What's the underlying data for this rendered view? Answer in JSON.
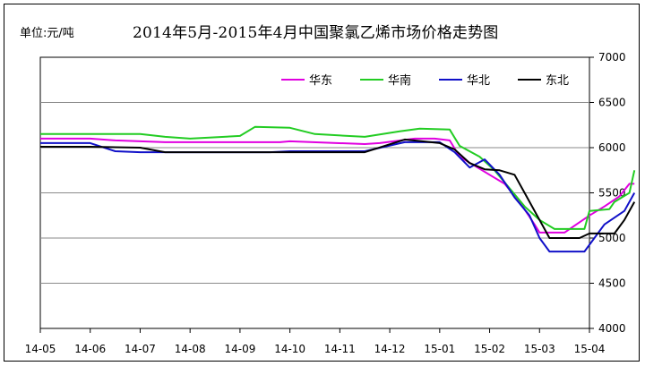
{
  "chart_data": {
    "type": "line",
    "title": "2014年5月-2015年4月中国聚氯乙烯市场价格走势图",
    "unit_label": "单位:元/吨",
    "y_axis_side": "right",
    "ylim": [
      4000,
      7000
    ],
    "yticks": [
      4000,
      4500,
      5000,
      5500,
      6000,
      6500,
      7000
    ],
    "ytick_labels": [
      "4000",
      "4500",
      "5000",
      "5500",
      "6000",
      "6500",
      "7000"
    ],
    "xticks": [
      "14-05",
      "14-06",
      "14-07",
      "14-08",
      "14-09",
      "14-10",
      "14-11",
      "14-12",
      "15-01",
      "15-02",
      "15-03",
      "15-04"
    ],
    "grid": true,
    "legend_position": "top-right",
    "series": [
      {
        "name": "华东",
        "color": "#e000e0",
        "points": [
          [
            0,
            6100
          ],
          [
            1,
            6100
          ],
          [
            1.5,
            6080
          ],
          [
            2.5,
            6060
          ],
          [
            4.8,
            6060
          ],
          [
            5,
            6070
          ],
          [
            6.5,
            6040
          ],
          [
            6.8,
            6050
          ],
          [
            7.5,
            6100
          ],
          [
            7.9,
            6100
          ],
          [
            8.2,
            6080
          ],
          [
            8.4,
            5900
          ],
          [
            9,
            5700
          ],
          [
            9.3,
            5600
          ],
          [
            9.6,
            5400
          ],
          [
            9.9,
            5150
          ],
          [
            10,
            5060
          ],
          [
            10.5,
            5060
          ],
          [
            11,
            5250
          ],
          [
            11.3,
            5350
          ],
          [
            11.6,
            5460
          ],
          [
            11.8,
            5600
          ],
          [
            11.9,
            5600
          ]
        ]
      },
      {
        "name": "华南",
        "color": "#22cc22",
        "points": [
          [
            0,
            6150
          ],
          [
            2,
            6150
          ],
          [
            2.5,
            6120
          ],
          [
            3,
            6100
          ],
          [
            4,
            6130
          ],
          [
            4.3,
            6230
          ],
          [
            5,
            6220
          ],
          [
            5.5,
            6150
          ],
          [
            6.5,
            6120
          ],
          [
            7.2,
            6180
          ],
          [
            7.6,
            6210
          ],
          [
            8.2,
            6200
          ],
          [
            8.4,
            6020
          ],
          [
            8.8,
            5900
          ],
          [
            9.1,
            5750
          ],
          [
            9.4,
            5550
          ],
          [
            9.7,
            5350
          ],
          [
            10,
            5200
          ],
          [
            10.3,
            5100
          ],
          [
            10.9,
            5100
          ],
          [
            11,
            5300
          ],
          [
            11.4,
            5320
          ],
          [
            11.5,
            5400
          ],
          [
            11.8,
            5500
          ],
          [
            11.9,
            5750
          ]
        ]
      },
      {
        "name": "华北",
        "color": "#1010c8",
        "points": [
          [
            0,
            6050
          ],
          [
            1,
            6050
          ],
          [
            1.5,
            5960
          ],
          [
            2,
            5950
          ],
          [
            3,
            5950
          ],
          [
            4.6,
            5950
          ],
          [
            5,
            5960
          ],
          [
            6.5,
            5960
          ],
          [
            7.3,
            6060
          ],
          [
            8,
            6060
          ],
          [
            8.3,
            5950
          ],
          [
            8.6,
            5780
          ],
          [
            8.9,
            5870
          ],
          [
            9.2,
            5700
          ],
          [
            9.5,
            5450
          ],
          [
            9.8,
            5250
          ],
          [
            10,
            5000
          ],
          [
            10.2,
            4850
          ],
          [
            10.9,
            4850
          ],
          [
            11.3,
            5150
          ],
          [
            11.7,
            5300
          ],
          [
            11.9,
            5500
          ]
        ]
      },
      {
        "name": "东北",
        "color": "#000000",
        "points": [
          [
            0,
            6010
          ],
          [
            1,
            6010
          ],
          [
            2,
            6000
          ],
          [
            2.5,
            5950
          ],
          [
            4,
            5950
          ],
          [
            6.5,
            5950
          ],
          [
            7.3,
            6090
          ],
          [
            8,
            6050
          ],
          [
            8.3,
            5980
          ],
          [
            8.6,
            5830
          ],
          [
            8.9,
            5760
          ],
          [
            9.2,
            5750
          ],
          [
            9.5,
            5700
          ],
          [
            9.7,
            5500
          ],
          [
            10,
            5200
          ],
          [
            10.2,
            5000
          ],
          [
            10.8,
            5000
          ],
          [
            11,
            5050
          ],
          [
            11.5,
            5050
          ],
          [
            11.7,
            5200
          ],
          [
            11.9,
            5400
          ]
        ]
      }
    ]
  }
}
